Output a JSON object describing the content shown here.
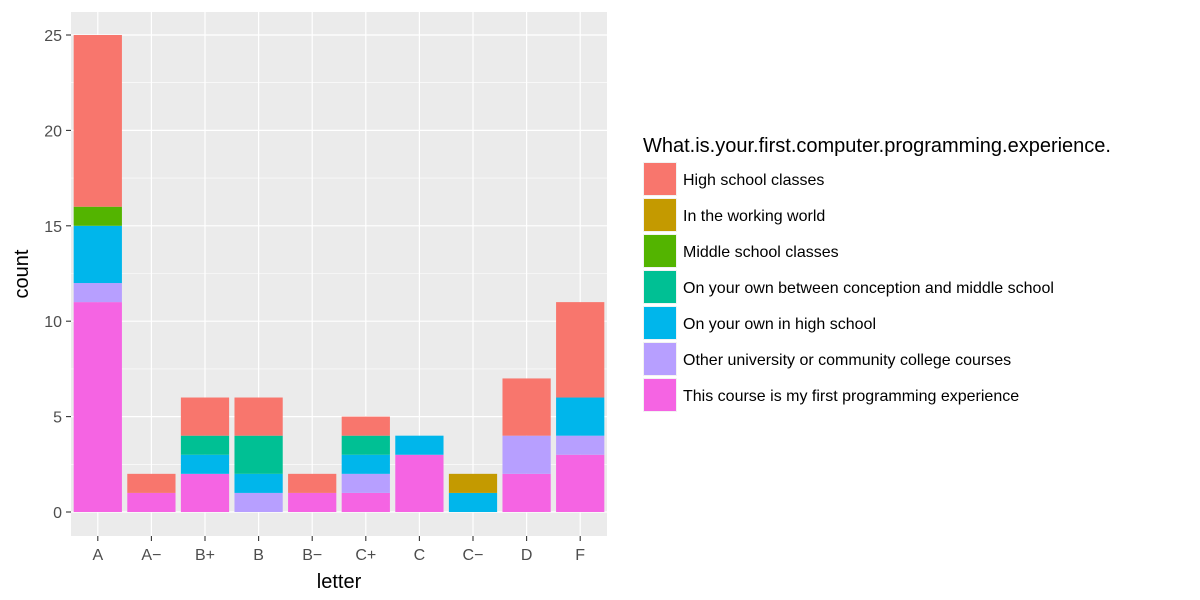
{
  "chart_data": {
    "type": "bar",
    "stacked": true,
    "xlabel": "letter",
    "ylabel": "count",
    "categories": [
      "A",
      "A−",
      "B+",
      "B",
      "B−",
      "C+",
      "C",
      "C−",
      "D",
      "F"
    ],
    "ylim": [
      0,
      26.25
    ],
    "y_ticks": [
      0,
      5,
      10,
      15,
      20,
      25
    ],
    "grid": true,
    "legend": {
      "title": "What.is.your.first.computer.programming.experience.",
      "position": "right"
    },
    "series": [
      {
        "name": "This course is my first programming experience",
        "color": "#F564E3",
        "values": [
          11,
          1,
          2,
          0,
          1,
          1,
          3,
          0,
          2,
          3
        ]
      },
      {
        "name": "Other university or community college courses",
        "color": "#B79FFF",
        "values": [
          1,
          0,
          0,
          1,
          0,
          1,
          0,
          0,
          2,
          1
        ]
      },
      {
        "name": "On your own in high school",
        "color": "#00B6EB",
        "values": [
          3,
          0,
          1,
          1,
          0,
          1,
          1,
          1,
          0,
          2
        ]
      },
      {
        "name": "On your own between conception and middle school",
        "color": "#00C094",
        "values": [
          0,
          0,
          1,
          2,
          0,
          1,
          0,
          0,
          0,
          0
        ]
      },
      {
        "name": "Middle school classes",
        "color": "#53B400",
        "values": [
          1,
          0,
          0,
          0,
          0,
          0,
          0,
          0,
          0,
          0
        ]
      },
      {
        "name": "In the working world",
        "color": "#C49A00",
        "values": [
          0,
          0,
          0,
          0,
          0,
          0,
          0,
          1,
          0,
          0
        ]
      },
      {
        "name": "High school classes",
        "color": "#F8766D",
        "values": [
          9,
          1,
          2,
          2,
          1,
          1,
          0,
          0,
          3,
          5
        ]
      }
    ],
    "legend_order": [
      "High school classes",
      "In the working world",
      "Middle school classes",
      "On your own between conception and middle school",
      "On your own in high school",
      "Other university or community college courses",
      "This course is my first programming experience"
    ]
  }
}
